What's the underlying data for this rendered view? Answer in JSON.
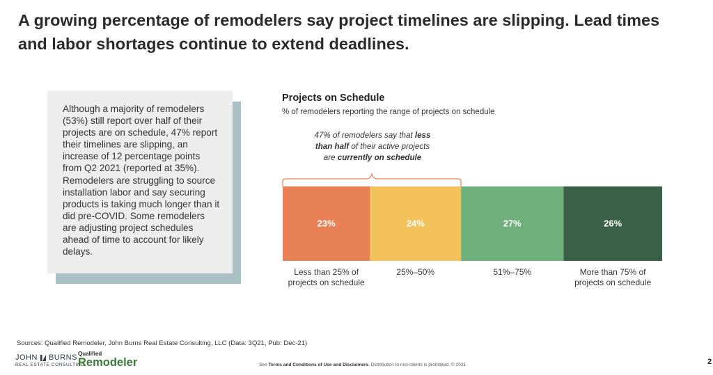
{
  "headline": {
    "line1": "A growing percentage of remodelers say project timelines are slipping. Lead times",
    "line2": "and labor shortages continue to extend deadlines."
  },
  "callout": {
    "text": "Although a majority of remodelers (53%) still report over half of their projects are on schedule, 47% report their timelines are slipping, an increase of 12 percentage points from Q2 2021 (reported at 35%). Remodelers are struggling to source installation labor and say securing products is taking much longer than it did pre-COVID. Some remodelers are adjusting project schedules ahead of time to account for likely delays."
  },
  "chart_data": {
    "type": "bar",
    "orientation": "horizontal-stacked",
    "title": "Projects on Schedule",
    "subtitle": "% of remodelers reporting the range of projects on schedule",
    "categories": [
      "Less than 25% of projects on schedule",
      "25%–50%",
      "51%–75%",
      "More than 75% of projects on schedule"
    ],
    "category_lines": [
      [
        "Less than 25% of",
        "projects on schedule"
      ],
      [
        "25%–50%"
      ],
      [
        "51%–75%"
      ],
      [
        "More than 75% of",
        "projects on schedule"
      ]
    ],
    "values": [
      23,
      24,
      27,
      26
    ],
    "data_labels": [
      "23%",
      "24%",
      "27%",
      "26%"
    ],
    "colors": [
      "#e98157",
      "#f4c25b",
      "#6fb07c",
      "#3a6147"
    ],
    "annotation": {
      "pre": "47% of remodelers say that ",
      "bold1": "less",
      "line2_bold": "than half",
      "line2_rest": " of their active projects",
      "line3_pre": "are ",
      "line3_bold": "currently on schedule"
    },
    "annotation_color": "#e98157"
  },
  "footer": {
    "sources": "Sources: Qualified Remodeler, John Burns Real Estate Consulting, LLC (Data: 3Q21, Pub: Dec-21)",
    "jb_logo_top_left": "JOHN",
    "jb_logo_top_right": "BURNS",
    "jb_logo_bottom": "REAL ESTATE CONSULTING",
    "qr_logo_small": "Qualified",
    "qr_logo_big": "Remodeler",
    "note_pre": "See ",
    "note_bold": "Terms and Conditions of Use and Disclaimers",
    "note_post": ". Distribution to non-clients is prohibited. © 2021",
    "page_number": "2"
  }
}
